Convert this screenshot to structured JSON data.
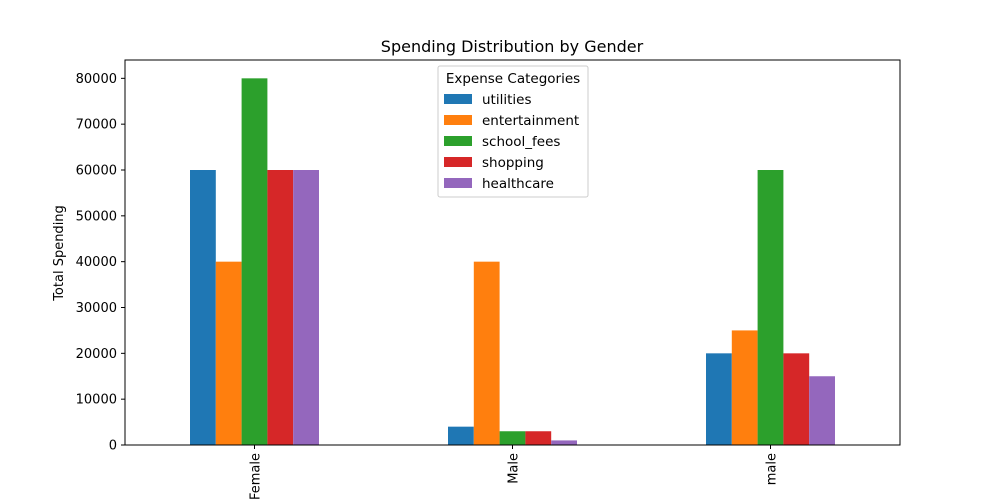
{
  "chart_data": {
    "type": "bar",
    "title": "Spending Distribution by Gender",
    "xlabel": "",
    "ylabel": "Total Spending",
    "ylim": [
      0,
      84000
    ],
    "yticks": [
      0,
      10000,
      20000,
      30000,
      40000,
      50000,
      60000,
      70000,
      80000
    ],
    "categories": [
      "Female",
      "Male",
      "male"
    ],
    "grid": false,
    "legend": {
      "title": "Expense Categories",
      "placement": "top-center"
    },
    "series": [
      {
        "name": "utilities",
        "color": "#1f77b4",
        "values": [
          60000,
          4000,
          20000
        ]
      },
      {
        "name": "entertainment",
        "color": "#ff7f0e",
        "values": [
          40000,
          40000,
          25000
        ]
      },
      {
        "name": "school_fees",
        "color": "#2ca02c",
        "values": [
          80000,
          3000,
          60000
        ]
      },
      {
        "name": "shopping",
        "color": "#d62728",
        "values": [
          60000,
          3000,
          20000
        ]
      },
      {
        "name": "healthcare",
        "color": "#9467bd",
        "values": [
          60000,
          1000,
          15000
        ]
      }
    ]
  }
}
